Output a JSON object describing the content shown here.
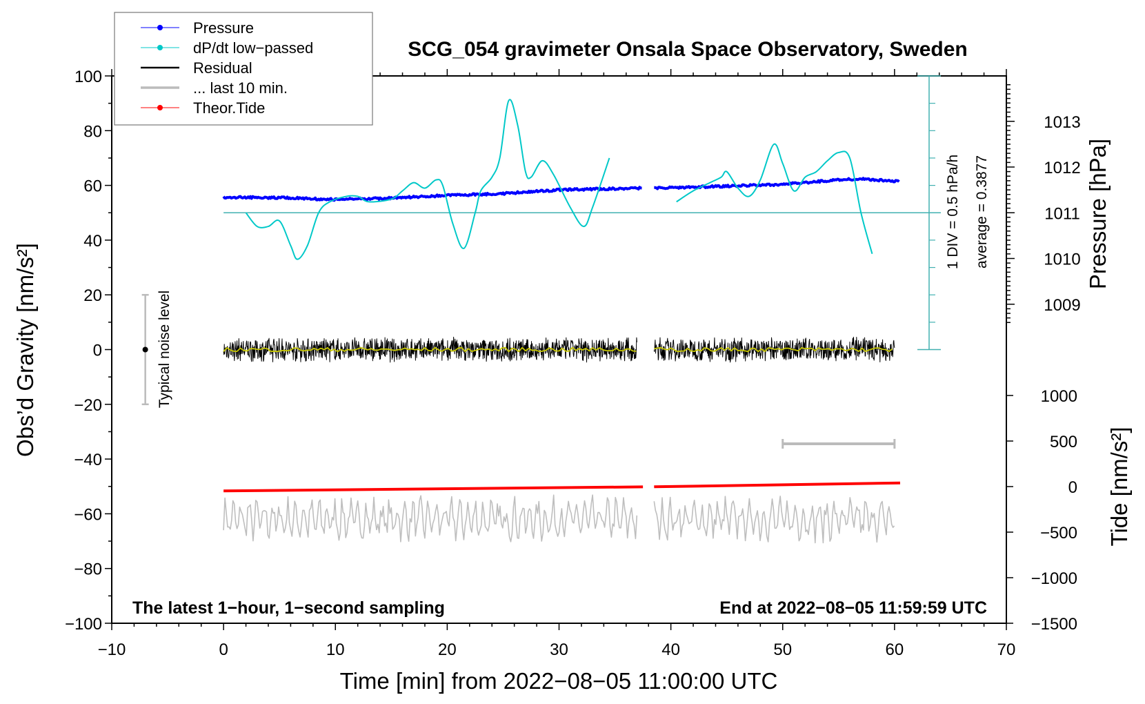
{
  "chart_data": {
    "type": "line",
    "title": "SCG_054 gravimeter Onsala Space Observatory, Sweden",
    "xlabel": "Time [min] from 2022−08−05 11:00:00 UTC",
    "ylabel": "Obs’d Gravity [nm/s²]",
    "y2label": "Pressure [hPa]",
    "y3label": "Tide [nm/s²]",
    "xlim": [
      -10,
      70
    ],
    "ylim": [
      -100,
      100
    ],
    "xticks": [
      "−10",
      "0",
      "10",
      "20",
      "30",
      "40",
      "50",
      "60",
      "70"
    ],
    "yticks": [
      "100",
      "80",
      "60",
      "40",
      "20",
      "0",
      "−20",
      "−40",
      "−60",
      "−80",
      "−100"
    ],
    "pressure_ticks": [
      "1013",
      "1012",
      "1011",
      "1010",
      "1009"
    ],
    "tide_ticks": [
      "1000",
      "500",
      "0",
      "−500",
      "−1000",
      "−1500"
    ],
    "legend": {
      "placement": "top-left",
      "entries": [
        "Pressure",
        "dP/dt low−passed",
        "Residual",
        "... last 10 min.",
        "Theor.Tide"
      ]
    },
    "colors": {
      "pressure": "#0000ff",
      "dpdt": "#00c8c8",
      "residual": "#000000",
      "smoothed": "#c8c800",
      "last10": "#bebebe",
      "tide": "#ff0000",
      "scale": "#40b0b0"
    },
    "dpdt_scale": {
      "label": "1 DIV = 0.5 hPa/h",
      "average": "average = 0.3877"
    },
    "noise_label": "Typical noise level",
    "noise_level": {
      "x": -7,
      "range": [
        -20,
        20
      ]
    },
    "footer_left": "The latest 1−hour, 1−second sampling",
    "footer_right": "End at 2022−08−05 11:59:59 UTC",
    "pressure_hPa": [
      [
        [
          0,
          1011.34
        ],
        [
          5,
          1011.33
        ],
        [
          10,
          1011.29
        ],
        [
          15,
          1011.32
        ],
        [
          20,
          1011.38
        ],
        [
          25,
          1011.42
        ],
        [
          30,
          1011.5
        ],
        [
          37.5,
          1011.54
        ]
      ],
      [
        [
          38.5,
          1011.54
        ],
        [
          45,
          1011.58
        ],
        [
          50,
          1011.62
        ],
        [
          55,
          1011.72
        ],
        [
          57,
          1011.74
        ],
        [
          60.5,
          1011.68
        ]
      ]
    ],
    "dpdt_hPa_per_h": [
      [
        [
          2,
          0
        ],
        [
          3,
          -0.25
        ],
        [
          4,
          -0.25
        ],
        [
          5,
          -0.15
        ],
        [
          6,
          -0.6
        ],
        [
          6.6,
          -0.85
        ],
        [
          7.5,
          -0.6
        ],
        [
          8.5,
          0
        ],
        [
          9.5,
          0.2
        ],
        [
          11,
          0.3
        ],
        [
          12,
          0.3
        ],
        [
          13,
          0.2
        ],
        [
          15,
          0.25
        ],
        [
          16,
          0.4
        ],
        [
          17,
          0.55
        ],
        [
          18,
          0.45
        ],
        [
          19,
          0.6
        ],
        [
          19.6,
          0.5
        ],
        [
          20.5,
          -0.2
        ],
        [
          21.5,
          -0.65
        ],
        [
          22.5,
          0
        ],
        [
          23,
          0.4
        ],
        [
          24,
          0.65
        ],
        [
          24.7,
          1.0
        ],
        [
          25.5,
          2.05
        ],
        [
          26.3,
          1.6
        ],
        [
          27,
          0.75
        ],
        [
          27.5,
          0.65
        ],
        [
          28.5,
          0.95
        ],
        [
          29.5,
          0.7
        ],
        [
          31,
          0.1
        ],
        [
          32.2,
          -0.25
        ],
        [
          33,
          0.1
        ],
        [
          34.5,
          1.0
        ]
      ],
      [
        [
          40.5,
          0.2
        ],
        [
          42,
          0.4
        ],
        [
          43.5,
          0.55
        ],
        [
          44.5,
          0.65
        ],
        [
          45,
          0.75
        ],
        [
          46,
          0.45
        ],
        [
          47,
          0.3
        ],
        [
          48,
          0.6
        ],
        [
          49.2,
          1.25
        ],
        [
          50,
          0.9
        ],
        [
          51,
          0.4
        ],
        [
          52,
          0.65
        ],
        [
          53,
          0.75
        ],
        [
          54,
          0.95
        ],
        [
          55,
          1.1
        ],
        [
          56,
          1.0
        ],
        [
          57,
          0
        ],
        [
          58,
          -0.75
        ]
      ]
    ],
    "residual": {
      "segments": [
        [
          0,
          37
        ],
        [
          38.5,
          60
        ]
      ],
      "center": 0,
      "amplitude": 4
    },
    "last10": {
      "segments": [
        [
          0,
          37
        ],
        [
          38.5,
          60
        ]
      ],
      "center": -62,
      "amplitude": 5
    },
    "last10_window": [
      50,
      60
    ],
    "tide_nm_s2": [
      [
        [
          0,
          -48
        ],
        [
          37.5,
          -3
        ]
      ],
      [
        [
          38.5,
          -2
        ],
        [
          60.5,
          40
        ]
      ]
    ]
  }
}
